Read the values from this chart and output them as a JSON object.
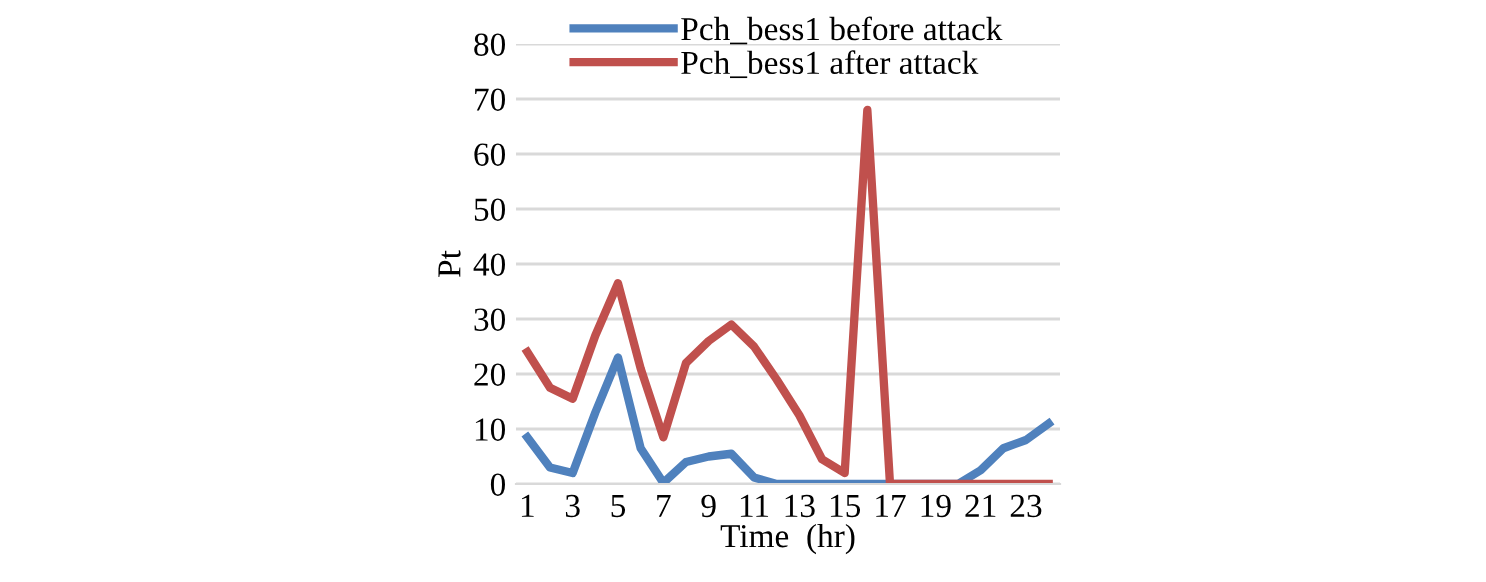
{
  "chart_data": {
    "type": "line",
    "xlabel": "Time  (hr)",
    "ylabel": "Pt",
    "categories": [
      "1",
      null,
      "3",
      null,
      "5",
      null,
      "7",
      null,
      "9",
      null,
      "11",
      null,
      "13",
      null,
      "15",
      null,
      "17",
      null,
      "19",
      null,
      "21",
      null,
      "23",
      null
    ],
    "series": [
      {
        "name": "Pch_bess1 before attack",
        "color": "#4f81bd",
        "values": [
          8.5,
          3,
          2,
          13,
          23,
          6.5,
          0.2,
          4,
          5,
          5.5,
          1.2,
          0,
          0,
          0,
          0,
          0,
          0,
          0,
          0,
          0,
          2.5,
          6.5,
          8,
          11
        ]
      },
      {
        "name": "Pch_bess1 after attack",
        "color": "#c0504d",
        "values": [
          24,
          17.5,
          15.5,
          27,
          36.5,
          21,
          8.5,
          22,
          26,
          29,
          25,
          19,
          12.5,
          4.5,
          2,
          68,
          0,
          0,
          0,
          0,
          0,
          0,
          0,
          0
        ]
      }
    ],
    "ylim": [
      0,
      80
    ],
    "yticks": [
      0,
      10,
      20,
      30,
      40,
      50,
      60,
      70,
      80
    ],
    "grid": "y",
    "legend": "top",
    "marker": "none",
    "line_style": "solid"
  }
}
